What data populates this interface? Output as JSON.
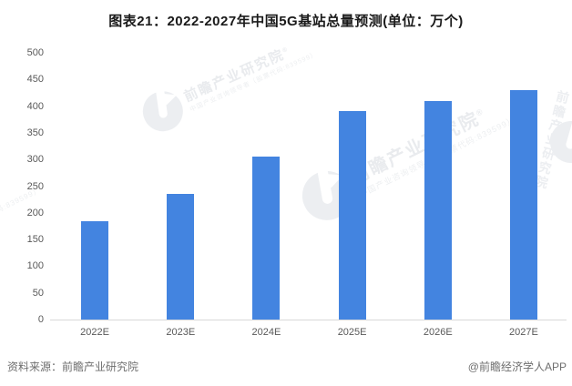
{
  "title": "图表21：2022-2027年中国5G基站总量预测(单位：万个)",
  "chart_data": {
    "type": "bar",
    "title": "图表21：2022-2027年中国5G基站总量预测(单位：万个)",
    "categories": [
      "2022E",
      "2023E",
      "2024E",
      "2025E",
      "2026E",
      "2027E"
    ],
    "values": [
      185,
      235,
      305,
      390,
      410,
      430
    ],
    "unit": "万个",
    "xlabel": "",
    "ylabel": "",
    "ylim": [
      0,
      500
    ],
    "yticks": [
      0,
      50,
      100,
      150,
      200,
      250,
      300,
      350,
      400,
      450,
      500
    ],
    "grid": false,
    "legend": false,
    "bar_color": "#4384E0"
  },
  "footer": {
    "source": "资料来源：前瞻产业研究院",
    "credit": "@前瞻经济学人APP"
  },
  "watermark": {
    "brand": "前瞻产业研究院",
    "reg_mark": "®",
    "subline": "中国产业咨询领导者（股票代码:839599）"
  },
  "colors": {
    "bar": "#4384E0",
    "axis_text": "#595959",
    "axis_line": "#D9D9D9",
    "title_text": "#1A1A1A",
    "footer_text": "#6E6E6E",
    "watermark": "#E9EBEE",
    "background": "#FFFFFF"
  }
}
